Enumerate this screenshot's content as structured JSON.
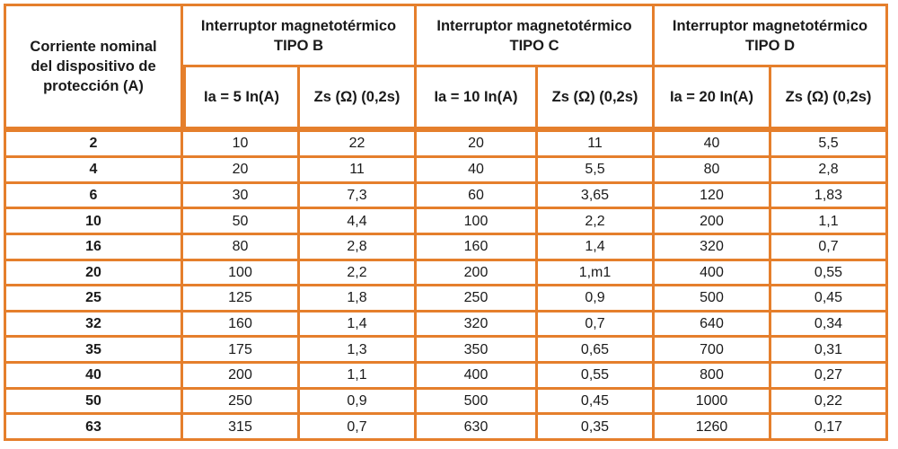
{
  "header": {
    "rated_current_lines": [
      "Corriente nominal",
      "del dispositivo de",
      "protección (A)"
    ],
    "groups": [
      {
        "line1": "Interruptor magnetotérmico",
        "line2": "TIPO B"
      },
      {
        "line1": "Interruptor magnetotérmico",
        "line2": "TIPO C"
      },
      {
        "line1": "Interruptor magnetotérmico",
        "line2": "TIPO D"
      }
    ],
    "subcolumns": [
      "Ia = 5 In(A)",
      "Zs (Ω) (0,2s)",
      "Ia = 10 In(A)",
      "Zs (Ω) (0,2s)",
      "Ia = 20 In(A)",
      "Zs (Ω) (0,2s)"
    ]
  },
  "rows": [
    [
      "2",
      "10",
      "22",
      "20",
      "11",
      "40",
      "5,5"
    ],
    [
      "4",
      "20",
      "11",
      "40",
      "5,5",
      "80",
      "2,8"
    ],
    [
      "6",
      "30",
      "7,3",
      "60",
      "3,65",
      "120",
      "1,83"
    ],
    [
      "10",
      "50",
      "4,4",
      "100",
      "2,2",
      "200",
      "1,1"
    ],
    [
      "16",
      "80",
      "2,8",
      "160",
      "1,4",
      "320",
      "0,7"
    ],
    [
      "20",
      "100",
      "2,2",
      "200",
      "1,m1",
      "400",
      "0,55"
    ],
    [
      "25",
      "125",
      "1,8",
      "250",
      "0,9",
      "500",
      "0,45"
    ],
    [
      "32",
      "160",
      "1,4",
      "320",
      "0,7",
      "640",
      "0,34"
    ],
    [
      "35",
      "175",
      "1,3",
      "350",
      "0,65",
      "700",
      "0,31"
    ],
    [
      "40",
      "200",
      "1,1",
      "400",
      "0,55",
      "800",
      "0,27"
    ],
    [
      "50",
      "250",
      "0,9",
      "500",
      "0,45",
      "1000",
      "0,22"
    ],
    [
      "63",
      "315",
      "0,7",
      "630",
      "0,35",
      "1260",
      "0,17"
    ]
  ],
  "colors": {
    "border": "#e57f2c",
    "background": "#ffffff",
    "text": "#1a1a1a"
  }
}
